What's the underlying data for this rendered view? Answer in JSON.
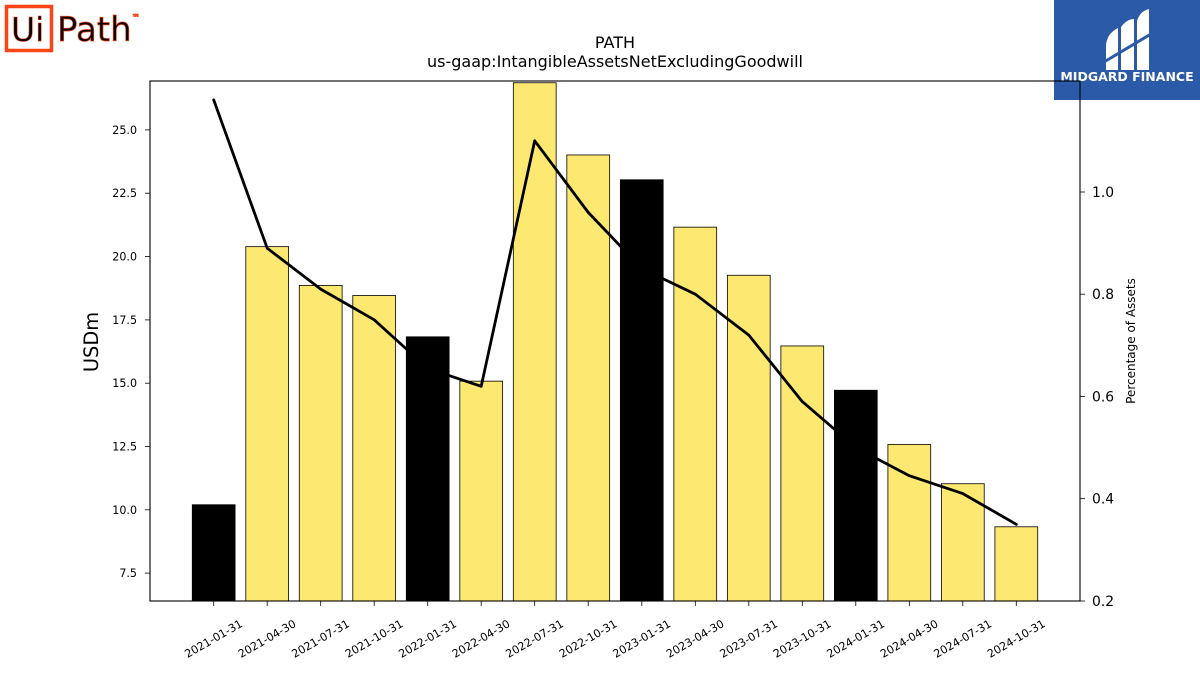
{
  "logos": {
    "uipath": {
      "box_text": "Ui",
      "word": "Path",
      "tm": "™",
      "color": "#fa4616"
    },
    "midgard": {
      "text": "MIDGARD FINANCE",
      "background": "#2b5aa8",
      "foreground": "#ffffff"
    }
  },
  "chart_data": {
    "type": "bar",
    "title": "PATH",
    "subtitle": "us-gaap:IntangibleAssetsNetExcludingGoodwill",
    "ylabel": "USDm",
    "y2label": "Percentage of Assets",
    "categories": [
      "2021-01-31",
      "2021-04-30",
      "2021-07-31",
      "2021-10-31",
      "2022-01-31",
      "2022-04-30",
      "2022-07-31",
      "2022-10-31",
      "2023-01-31",
      "2023-04-30",
      "2023-07-31",
      "2023-10-31",
      "2024-01-31",
      "2024-04-30",
      "2024-07-31",
      "2024-10-31"
    ],
    "series": [
      {
        "type": "bar",
        "axis": "left",
        "values": [
          10.2,
          20.39,
          18.86,
          18.46,
          16.83,
          15.08,
          26.86,
          24.01,
          23.03,
          21.16,
          19.26,
          16.47,
          14.72,
          12.58,
          11.03,
          9.33
        ],
        "colors": [
          "#000000",
          "#fde971",
          "#fde971",
          "#fde971",
          "#000000",
          "#fde971",
          "#fde971",
          "#fde971",
          "#000000",
          "#fde971",
          "#fde971",
          "#fde971",
          "#000000",
          "#fde971",
          "#fde971",
          "#fde971"
        ]
      },
      {
        "type": "line",
        "axis": "right",
        "values": [
          1.18,
          0.89,
          0.81,
          0.75,
          0.655,
          0.62,
          1.1,
          0.96,
          0.85,
          0.8,
          0.72,
          0.59,
          0.5,
          0.445,
          0.41,
          0.35
        ],
        "color": "#000000"
      }
    ],
    "ylim": [
      6.4,
      26.93
    ],
    "y2lim": [
      0.2,
      1.217
    ],
    "yticks": [
      "7.5",
      "10.0",
      "12.5",
      "15.0",
      "17.5",
      "20.0",
      "22.5",
      "25.0"
    ],
    "y2ticks": [
      "0.2",
      "0.4",
      "0.6",
      "0.8",
      "1.0"
    ],
    "grid": false,
    "legend": "none"
  }
}
